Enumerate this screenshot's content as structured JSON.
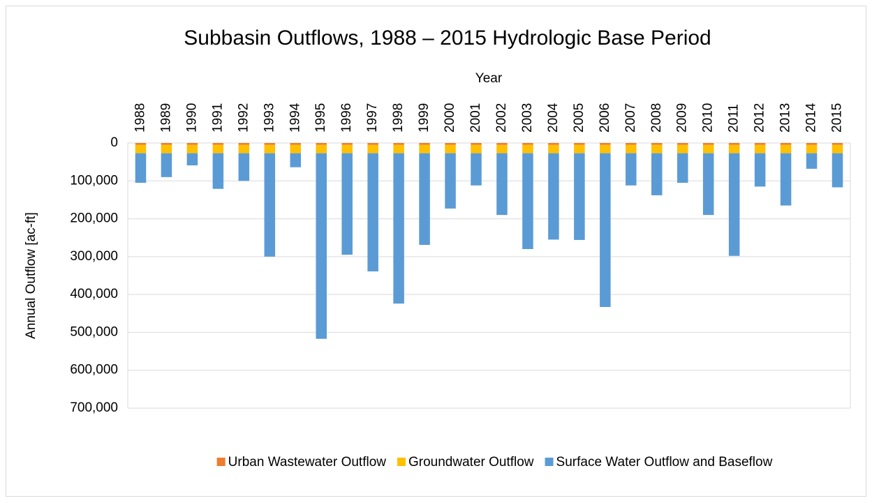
{
  "chart_data": {
    "type": "stacked_bar",
    "title": "Subbasin Outflows, 1988 – 2015 Hydrologic Base Period",
    "x_label": "Year",
    "y_label": "Annual Outflow [ac-ft]",
    "categories": [
      "1988",
      "1989",
      "1990",
      "1991",
      "1992",
      "1993",
      "1994",
      "1995",
      "1996",
      "1997",
      "1998",
      "1999",
      "2000",
      "2001",
      "2002",
      "2003",
      "2004",
      "2005",
      "2006",
      "2007",
      "2008",
      "2009",
      "2010",
      "2011",
      "2012",
      "2013",
      "2014",
      "2015"
    ],
    "series": [
      {
        "name": "Urban Wastewater Outflow",
        "color": "#ed7d31",
        "values": [
          5000,
          5000,
          5000,
          5000,
          5000,
          5000,
          5000,
          5000,
          5000,
          5000,
          5000,
          5000,
          5000,
          5000,
          5000,
          5000,
          5000,
          5000,
          5000,
          5000,
          5000,
          5000,
          5000,
          5000,
          5000,
          5000,
          5000,
          5000
        ]
      },
      {
        "name": "Groundwater Outflow",
        "color": "#ffc000",
        "values": [
          22000,
          22000,
          22000,
          22000,
          22000,
          22000,
          22000,
          22000,
          22000,
          22000,
          22000,
          22000,
          22000,
          22000,
          22000,
          22000,
          22000,
          22000,
          22000,
          22000,
          22000,
          22000,
          22000,
          22000,
          22000,
          22000,
          22000,
          22000
        ]
      },
      {
        "name": "Surface Water Outflow and Baseflow",
        "color": "#5b9bd5",
        "values": [
          78000,
          63000,
          32000,
          94000,
          73000,
          273000,
          37000,
          490000,
          268000,
          312000,
          397000,
          242000,
          146000,
          85000,
          163000,
          253000,
          228000,
          229000,
          406000,
          85000,
          111000,
          78000,
          163000,
          271000,
          88000,
          138000,
          41000,
          90000
        ]
      }
    ],
    "ylim": [
      0,
      700000
    ],
    "y_inverted": true,
    "yticks": [
      0,
      {
        "value": 100000,
        "label": "100,000"
      },
      {
        "value": 200000,
        "label": "200,000"
      },
      {
        "value": 300000,
        "label": "300,000"
      },
      {
        "value": 400000,
        "label": "400,000"
      },
      {
        "value": 500000,
        "label": "500,000"
      },
      {
        "value": 600000,
        "label": "600,000"
      },
      {
        "value": 700000,
        "label": "700,000"
      }
    ],
    "grid": true,
    "legend": "bottom"
  }
}
